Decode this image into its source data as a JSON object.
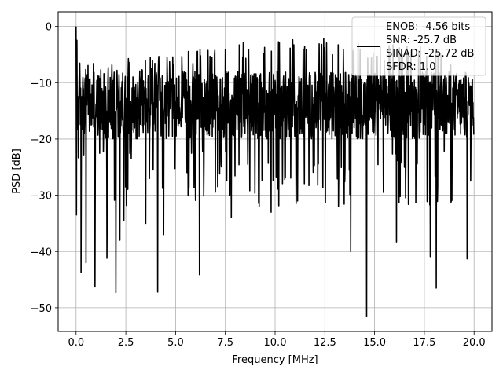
{
  "chart_data": {
    "type": "line",
    "xlabel": "Frequency [MHz]",
    "ylabel": "PSD [dB]",
    "xlim": [
      -0.9,
      20.9
    ],
    "ylim": [
      -54.2,
      2.6
    ],
    "x_ticks": [
      0.0,
      2.5,
      5.0,
      7.5,
      10.0,
      12.5,
      15.0,
      17.5,
      20.0
    ],
    "x_tick_labels": [
      "0.0",
      "2.5",
      "5.0",
      "7.5",
      "10.0",
      "12.5",
      "15.0",
      "17.5",
      "20.0"
    ],
    "y_ticks": [
      0,
      -10,
      -20,
      -30,
      -40,
      -50
    ],
    "y_tick_labels": [
      "0",
      "−10",
      "−20",
      "−30",
      "−40",
      "−50"
    ],
    "grid": true,
    "legend_position": "top-right",
    "legend_lines": [
      "ENOB: -4.56 bits",
      "SNR: -25.7 dB",
      "SINAD: -25.72 dB",
      "SFDR: 1.0"
    ],
    "series": [
      {
        "color": "#000000",
        "x_range": [
          0.0,
          20.0
        ],
        "envelope_upper": [
          [
            0.0,
            0.0
          ],
          [
            0.2,
            -6.0
          ],
          [
            2.4,
            -5.5
          ],
          [
            5.0,
            -4.5
          ],
          [
            7.5,
            -3.0
          ],
          [
            10.0,
            -2.5
          ],
          [
            12.5,
            -2.0
          ],
          [
            15.0,
            -3.0
          ],
          [
            17.5,
            -3.0
          ],
          [
            20.0,
            -8.0
          ]
        ],
        "typical_band": [
          -20,
          -8
        ],
        "peak": {
          "x": 0.0,
          "y": 0.0
        },
        "notable_dips": [
          {
            "x": 0.02,
            "y": -33.5
          },
          {
            "x": 0.25,
            "y": -43.7
          },
          {
            "x": 0.5,
            "y": -42.0
          },
          {
            "x": 0.95,
            "y": -46.3
          },
          {
            "x": 1.55,
            "y": -41.2
          },
          {
            "x": 2.0,
            "y": -47.3
          },
          {
            "x": 2.2,
            "y": -38.0
          },
          {
            "x": 2.4,
            "y": -34.5
          },
          {
            "x": 3.5,
            "y": -35.0
          },
          {
            "x": 4.1,
            "y": -47.2
          },
          {
            "x": 4.4,
            "y": -37.0
          },
          {
            "x": 6.2,
            "y": -44.1
          },
          {
            "x": 7.8,
            "y": -34.0
          },
          {
            "x": 9.8,
            "y": -33.0
          },
          {
            "x": 13.8,
            "y": -40.0
          },
          {
            "x": 14.6,
            "y": -51.5
          },
          {
            "x": 16.1,
            "y": -38.3
          },
          {
            "x": 17.8,
            "y": -40.9
          },
          {
            "x": 18.1,
            "y": -46.5
          },
          {
            "x": 19.65,
            "y": -41.3
          }
        ]
      }
    ]
  }
}
